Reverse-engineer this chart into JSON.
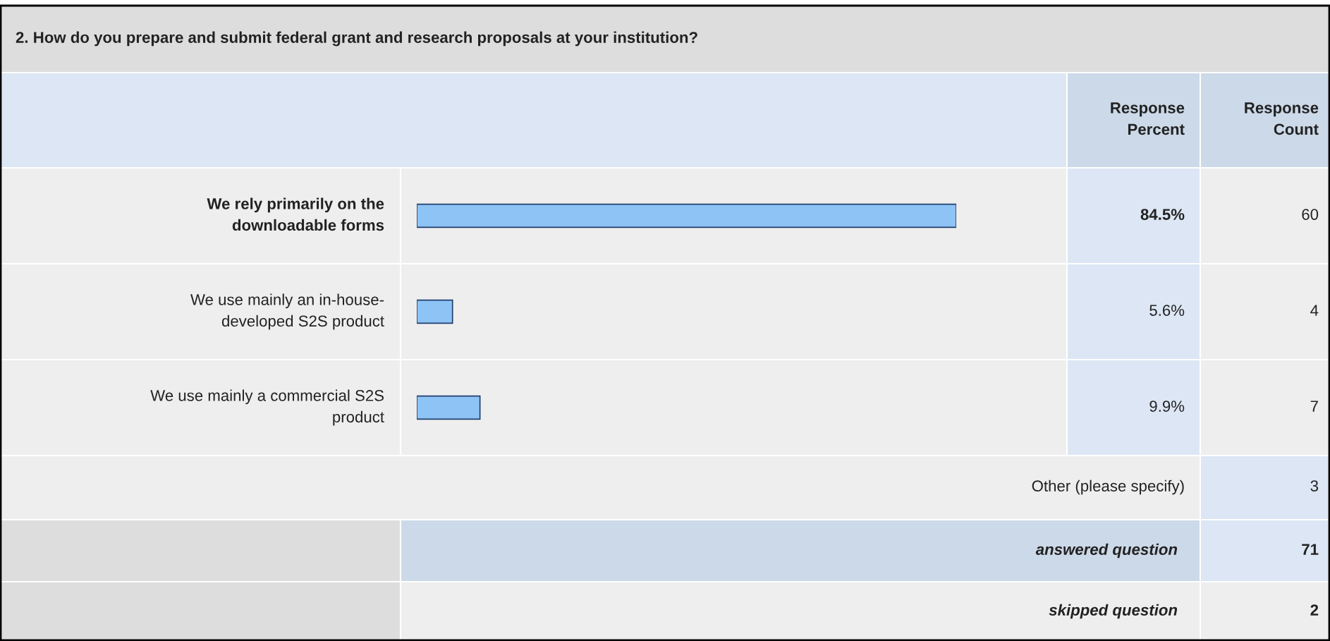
{
  "chart_data": {
    "type": "bar",
    "orientation": "horizontal",
    "title": "2. How do you prepare and submit federal grant and research proposals at your institution?",
    "categories": [
      "We rely primarily on the\ndownloadable forms",
      "We use mainly an in-house-\ndeveloped S2S product",
      "We use mainly a commercial S2S\nproduct"
    ],
    "values": [
      84.5,
      5.6,
      9.9
    ],
    "value_labels": [
      "84.5%",
      "5.6%",
      "9.9%"
    ],
    "color": "#8ec3f5",
    "annotations": [
      "Response\nPercent",
      "Response\nCount",
      "60",
      "4",
      "7",
      "Other (please specify)",
      "3",
      "answered question",
      "71",
      "skipped question",
      "2"
    ]
  }
}
